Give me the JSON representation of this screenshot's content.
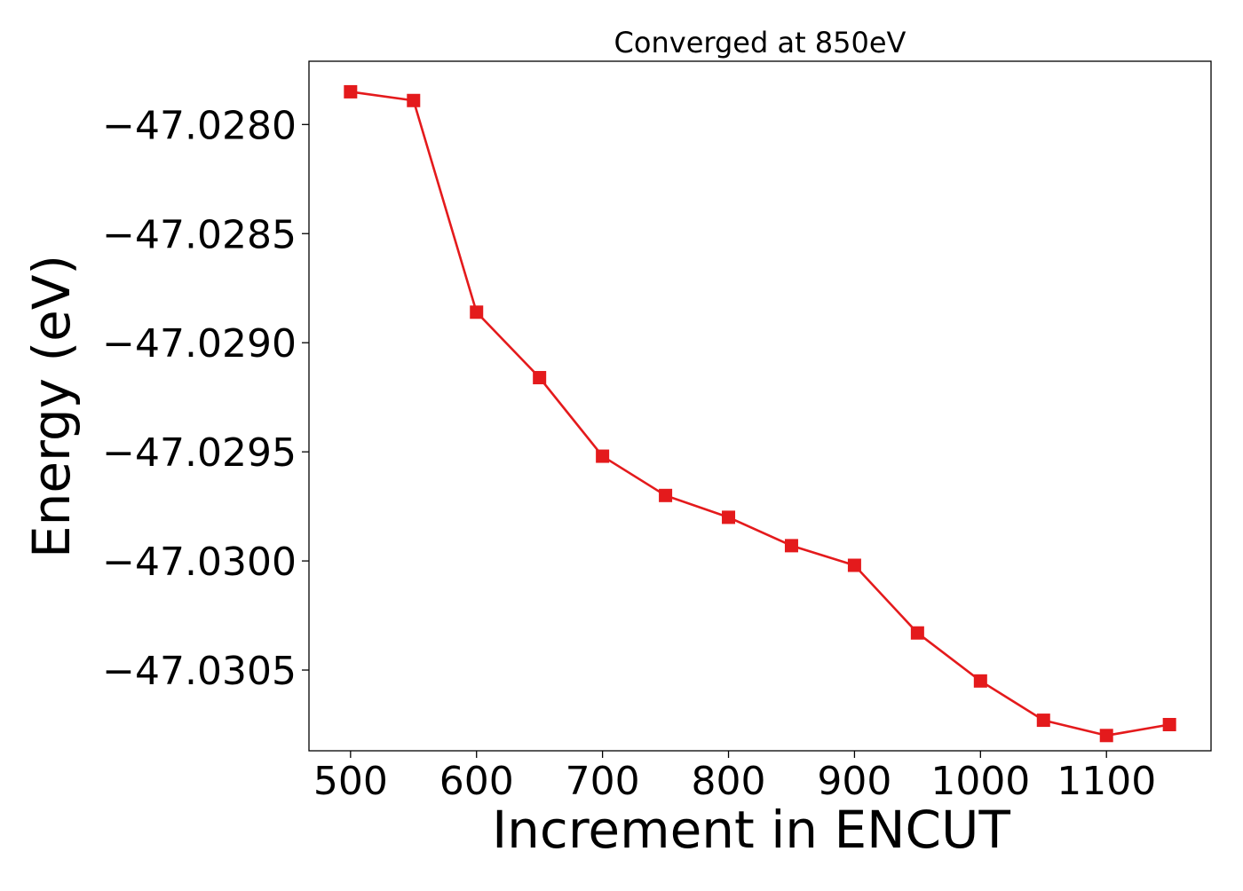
{
  "chart_data": {
    "type": "line",
    "title": "Converged at 850eV",
    "xlabel": "Increment in ENCUT",
    "ylabel": "Energy (eV)",
    "x": [
      500,
      550,
      600,
      650,
      700,
      750,
      800,
      850,
      900,
      950,
      1000,
      1050,
      1100,
      1150
    ],
    "series": [
      {
        "values": [
          -47.02785,
          -47.02789,
          -47.02886,
          -47.02916,
          -47.02952,
          -47.0297,
          -47.0298,
          -47.02993,
          -47.03002,
          -47.03033,
          -47.03055,
          -47.03073,
          -47.0308,
          -47.03075
        ],
        "color": "#e41a1c",
        "marker": "square"
      }
    ],
    "xlim": [
      467,
      1183
    ],
    "ylim": [
      -47.03087,
      -47.02771
    ],
    "xticks": [
      500,
      600,
      700,
      800,
      900,
      1000,
      1100
    ],
    "xtick_labels": [
      "500",
      "600",
      "700",
      "800",
      "900",
      "1000",
      "1100"
    ],
    "yticks": [
      -47.028,
      -47.0285,
      -47.029,
      -47.0295,
      -47.03,
      -47.0305
    ],
    "ytick_labels": [
      "−47.0280",
      "−47.0285",
      "−47.0290",
      "−47.0295",
      "−47.0300",
      "−47.0305"
    ],
    "grid": false,
    "legend": "none"
  }
}
